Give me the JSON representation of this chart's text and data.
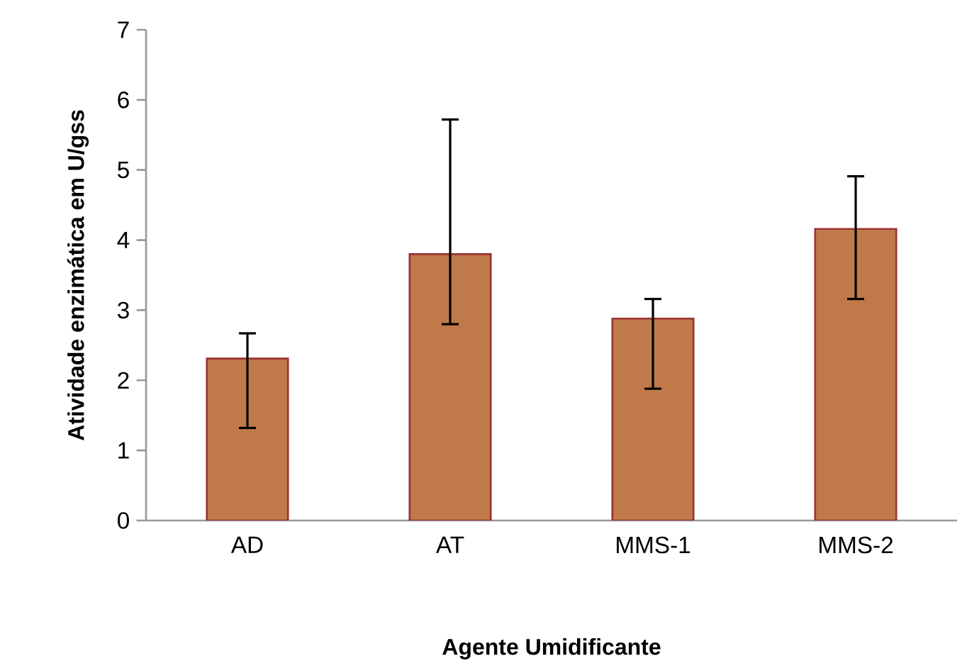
{
  "chart_data": {
    "type": "bar",
    "xlabel": "Agente Umidificante",
    "ylabel": "Atividade enzimática em U/gss",
    "categories": [
      "AD",
      "AT",
      "MMS-1",
      "MMS-2"
    ],
    "values": [
      2.31,
      3.8,
      2.88,
      4.16
    ],
    "errors": [
      [
        1.32,
        2.67
      ],
      [
        2.8,
        5.72
      ],
      [
        1.88,
        3.16
      ],
      [
        3.16,
        4.91
      ]
    ],
    "color": "#c07a4a",
    "ylim": [
      0,
      7
    ],
    "yticks": [
      0,
      1,
      2,
      3,
      4,
      5,
      6,
      7
    ]
  }
}
